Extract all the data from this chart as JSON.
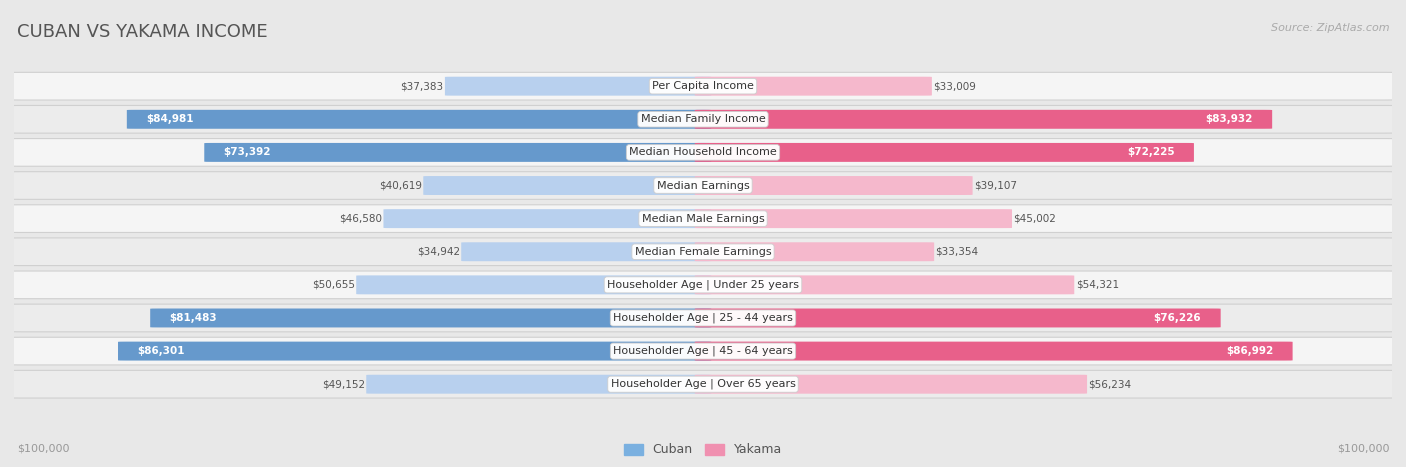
{
  "title": "CUBAN VS YAKAMA INCOME",
  "source": "Source: ZipAtlas.com",
  "categories": [
    "Per Capita Income",
    "Median Family Income",
    "Median Household Income",
    "Median Earnings",
    "Median Male Earnings",
    "Median Female Earnings",
    "Householder Age | Under 25 years",
    "Householder Age | 25 - 44 years",
    "Householder Age | 45 - 64 years",
    "Householder Age | Over 65 years"
  ],
  "cuban_values": [
    37383,
    84981,
    73392,
    40619,
    46580,
    34942,
    50655,
    81483,
    86301,
    49152
  ],
  "yakama_values": [
    33009,
    83932,
    72225,
    39107,
    45002,
    33354,
    54321,
    76226,
    86992,
    56234
  ],
  "cuban_color_light": "#b8d0ee",
  "cuban_color_dark": "#6699cc",
  "yakama_color_light": "#f5b8cc",
  "yakama_color_dark": "#e8608a",
  "max_value": 100000,
  "bg_color": "#e8e8e8",
  "row_bg_even": "#f5f5f5",
  "row_bg_odd": "#ececec",
  "label_bg": "#ffffff",
  "title_color": "#555555",
  "source_color": "#aaaaaa",
  "axis_label_color": "#999999",
  "legend_cuban_color": "#7ab0e0",
  "legend_yakama_color": "#f090b0",
  "value_outside_color": "#555555",
  "value_inside_color": "#ffffff",
  "inside_threshold": 65000,
  "cat_label_fontsize": 8.0,
  "value_fontsize": 7.5,
  "title_fontsize": 13,
  "source_fontsize": 8,
  "legend_fontsize": 9,
  "axis_fontsize": 8
}
